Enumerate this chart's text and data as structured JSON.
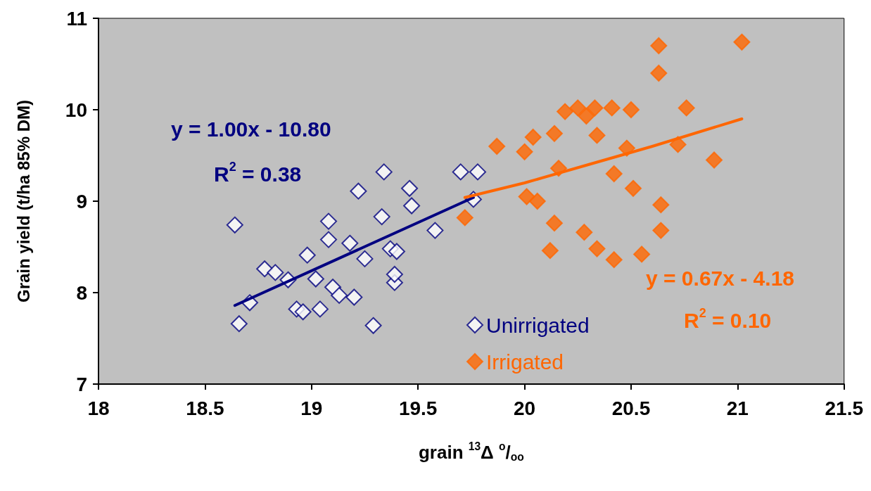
{
  "chart_data": {
    "type": "scatter",
    "xlabel": "grain $^{13}$Δ $^{o}$/$_{oo}$",
    "ylabel": "Grain yield (t/ha 85% DM)",
    "xlim": [
      18,
      21.5
    ],
    "xticks": [
      18,
      18.5,
      19,
      19.5,
      20,
      20.5,
      21,
      21.5
    ],
    "ylim": [
      7,
      11
    ],
    "yticks": [
      7,
      8,
      9,
      10,
      11
    ],
    "grid": false,
    "legend": "bottom",
    "marker": "diamond",
    "annotations": [
      "y = 1.00x - 10.80",
      "R$^{2}$ = 0.38",
      "y = 0.67x - 4.18",
      "R$^{2}$ = 0.10"
    ],
    "series": [
      {
        "name": "Unirrigated",
        "color": "#000080",
        "x": [
          18.64,
          18.66,
          18.71,
          18.78,
          18.83,
          18.89,
          18.93,
          18.96,
          18.98,
          19.02,
          19.04,
          19.08,
          19.08,
          19.1,
          19.13,
          19.18,
          19.2,
          19.22,
          19.25,
          19.29,
          19.33,
          19.34,
          19.37,
          19.39,
          19.39,
          19.4,
          19.46,
          19.47,
          19.58,
          19.7,
          19.78,
          19.76
        ],
        "values": [
          8.74,
          7.66,
          7.89,
          8.26,
          8.22,
          8.14,
          7.82,
          7.79,
          8.41,
          8.15,
          7.82,
          8.58,
          8.78,
          8.06,
          7.97,
          8.54,
          7.95,
          9.11,
          8.37,
          7.64,
          8.83,
          9.32,
          8.48,
          8.11,
          8.2,
          8.45,
          9.14,
          8.95,
          8.68,
          9.32,
          9.32,
          9.02
        ]
      },
      {
        "name": "Irrigated",
        "color": "#ff6600",
        "x": [
          19.72,
          19.87,
          20.0,
          20.04,
          20.14,
          20.19,
          20.25,
          20.29,
          20.33,
          20.41,
          20.5,
          20.63,
          20.63,
          20.76,
          21.02,
          20.34,
          20.16,
          20.48,
          20.72,
          20.89,
          20.42,
          20.51,
          20.01,
          20.06,
          20.64,
          20.14,
          20.64,
          20.28,
          20.12,
          20.34,
          20.55,
          20.42
        ],
        "values": [
          8.82,
          9.6,
          9.54,
          9.7,
          9.74,
          9.98,
          10.02,
          9.93,
          10.02,
          10.02,
          10.0,
          10.7,
          10.4,
          10.02,
          10.74,
          9.72,
          9.36,
          9.58,
          9.62,
          9.45,
          9.3,
          9.14,
          9.05,
          9.0,
          8.96,
          8.76,
          8.68,
          8.66,
          8.46,
          8.48,
          8.42,
          8.36
        ]
      },
      {
        "type": "line",
        "marker": "none",
        "color": "#000080",
        "x": [
          18.64,
          19.76
        ],
        "values": [
          7.86,
          9.04
        ]
      },
      {
        "type": "line",
        "marker": "none",
        "color": "#ff6600",
        "x": [
          19.72,
          20.0,
          20.3,
          20.6,
          21.02
        ],
        "values": [
          9.04,
          9.2,
          9.4,
          9.6,
          9.9
        ]
      }
    ]
  }
}
